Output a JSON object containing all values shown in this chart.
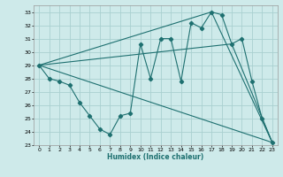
{
  "title": "",
  "xlabel": "Humidex (Indice chaleur)",
  "ylabel": "",
  "background_color": "#ceeaea",
  "grid_color": "#aad0d0",
  "line_color": "#1e7070",
  "ylim": [
    23,
    33.5
  ],
  "xlim": [
    -0.5,
    23.5
  ],
  "yticks": [
    23,
    24,
    25,
    26,
    27,
    28,
    29,
    30,
    31,
    32,
    33
  ],
  "xticks": [
    0,
    1,
    2,
    3,
    4,
    5,
    6,
    7,
    8,
    9,
    10,
    11,
    12,
    13,
    14,
    15,
    16,
    17,
    18,
    19,
    20,
    21,
    22,
    23
  ],
  "series_main": {
    "x": [
      0,
      1,
      2,
      3,
      4,
      5,
      6,
      7,
      8,
      9,
      10,
      11,
      12,
      13,
      14,
      15,
      16,
      17,
      18,
      19,
      20,
      21,
      22,
      23
    ],
    "y": [
      29,
      28,
      27.8,
      27.5,
      26.2,
      25.2,
      24.2,
      23.8,
      25.2,
      25.4,
      30.6,
      28.0,
      31.0,
      31.0,
      27.8,
      32.2,
      31.8,
      33.0,
      32.8,
      30.6,
      31.0,
      27.8,
      25.0,
      23.2
    ]
  },
  "series_lines": [
    {
      "x": [
        0,
        23
      ],
      "y": [
        29,
        23.2
      ]
    },
    {
      "x": [
        0,
        17,
        23
      ],
      "y": [
        29,
        33.0,
        23.2
      ]
    },
    {
      "x": [
        0,
        19,
        23
      ],
      "y": [
        29,
        30.6,
        23.2
      ]
    }
  ]
}
